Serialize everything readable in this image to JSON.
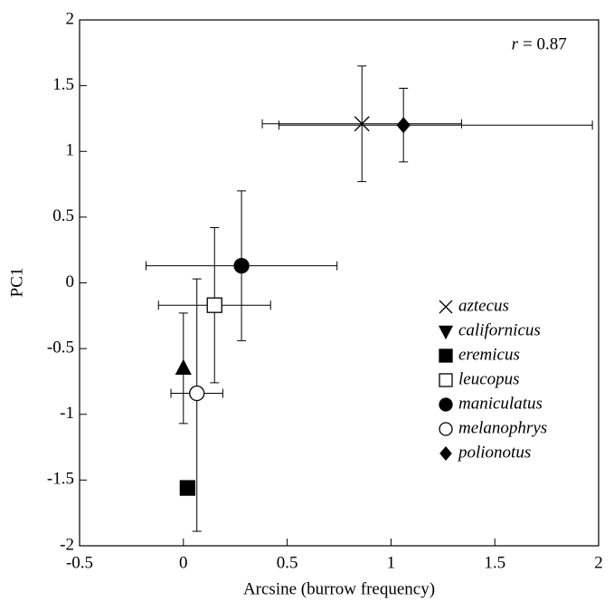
{
  "chart_data": {
    "type": "scatter",
    "xlabel": "Arcsine (burrow frequency)",
    "ylabel": "PC1",
    "annotation": {
      "symbol": "r",
      "text": "= 0.87"
    },
    "xlim": [
      -0.5,
      2
    ],
    "ylim": [
      -2,
      2
    ],
    "xticks": [
      -0.5,
      0,
      0.5,
      1,
      1.5,
      2
    ],
    "yticks": [
      -2,
      -1.5,
      -1,
      -0.5,
      0,
      0.5,
      1,
      1.5,
      2
    ],
    "color": "#000000",
    "series": [
      {
        "name": "aztecus",
        "marker": "x",
        "x": [
          0.86
        ],
        "values": [
          1.21
        ],
        "xerr": [
          [
            0.48,
            0.48
          ]
        ],
        "yerr": [
          [
            0.44,
            0.44
          ]
        ]
      },
      {
        "name": "californicus",
        "marker": "triangle",
        "x": [
          0.0
        ],
        "values": [
          -0.65
        ],
        "yerr": [
          [
            0.42,
            0.42
          ]
        ]
      },
      {
        "name": "eremicus",
        "marker": "square",
        "x": [
          0.02
        ],
        "values": [
          -1.56
        ]
      },
      {
        "name": "leucopus",
        "marker": "open-square",
        "x": [
          0.15
        ],
        "values": [
          -0.17
        ],
        "xerr": [
          [
            0.27,
            0.27
          ]
        ],
        "yerr": [
          [
            0.59,
            0.59
          ]
        ]
      },
      {
        "name": "maniculatus",
        "marker": "circle",
        "x": [
          0.28
        ],
        "values": [
          0.13
        ],
        "xerr": [
          [
            0.46,
            0.46
          ]
        ],
        "yerr": [
          [
            0.57,
            0.57
          ]
        ]
      },
      {
        "name": "melanophrys",
        "marker": "open-circle",
        "x": [
          0.065
        ],
        "values": [
          -0.84
        ],
        "xerr": [
          [
            0.125,
            0.125
          ]
        ],
        "yerr": [
          [
            1.05,
            0.87
          ]
        ]
      },
      {
        "name": "polionotus",
        "marker": "diamond",
        "x": [
          1.06
        ],
        "values": [
          1.2
        ],
        "xerr": [
          [
            0.6,
            0.91
          ]
        ],
        "yerr": [
          [
            0.28,
            0.28
          ]
        ]
      }
    ]
  }
}
